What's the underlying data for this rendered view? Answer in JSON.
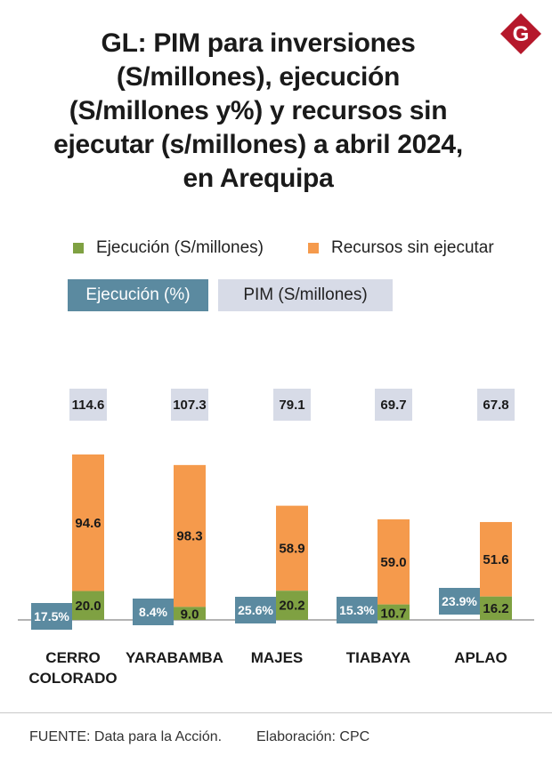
{
  "title_lines": [
    "GL: PIM para inversiones",
    "(S/millones), ejecución",
    "(S/millones y%)  y recursos sin",
    "ejecutar (s/millones) a abril 2024,",
    "en Arequipa"
  ],
  "logo_letter": "G",
  "legend": {
    "ejecucion_label": "Ejecución (S/millones)",
    "recursos_label": "Recursos sin ejecutar",
    "ejecucion_pct_label": "Ejecución (%)",
    "pim_label": "PIM (S/millones)"
  },
  "colors": {
    "ejecucion": "#7fa142",
    "recursos": "#f59a4c",
    "ejecucion_pct": "#5b8aa0",
    "pim": "#d7dbe7",
    "logo": "#b5182b"
  },
  "chart_data": {
    "type": "bar",
    "stacked": true,
    "categories": [
      "CERRO COLORADO",
      "YARABAMBA",
      "MAJES",
      "TIABAYA",
      "APLAO"
    ],
    "category_lines": [
      [
        "CERRO",
        "COLORADO"
      ],
      [
        "YARABAMBA"
      ],
      [
        "MAJES"
      ],
      [
        "TIABAYA"
      ],
      [
        "APLAO"
      ]
    ],
    "series": [
      {
        "name": "Ejecución (S/millones)",
        "values": [
          20.0,
          9.0,
          20.2,
          10.7,
          16.2
        ]
      },
      {
        "name": "Recursos sin ejecutar",
        "values": [
          94.6,
          98.3,
          58.9,
          59.0,
          51.6
        ]
      }
    ],
    "ejecucion_pct": [
      "17.5%",
      "8.4%",
      "25.6%",
      "15.3%",
      "23.9%"
    ],
    "ejecucion_pct_values": [
      17.5,
      8.4,
      25.6,
      15.3,
      23.9
    ],
    "pim_labels": [
      "114.6",
      "107.3",
      "79.1",
      "69.7",
      "67.8"
    ],
    "pim_values": [
      114.6,
      107.3,
      79.1,
      69.7,
      67.8
    ],
    "ejecucion_labels": [
      "20.0",
      "9.0",
      "20.2",
      "10.7",
      "16.2"
    ],
    "recursos_labels": [
      "94.6",
      "98.3",
      "58.9",
      "59.0",
      "51.6"
    ],
    "ylim": [
      0,
      115
    ],
    "legend_position": "top",
    "grid": false
  },
  "footer": {
    "source": "FUENTE: Data para la Acción.",
    "credit": "Elaboración: CPC"
  }
}
